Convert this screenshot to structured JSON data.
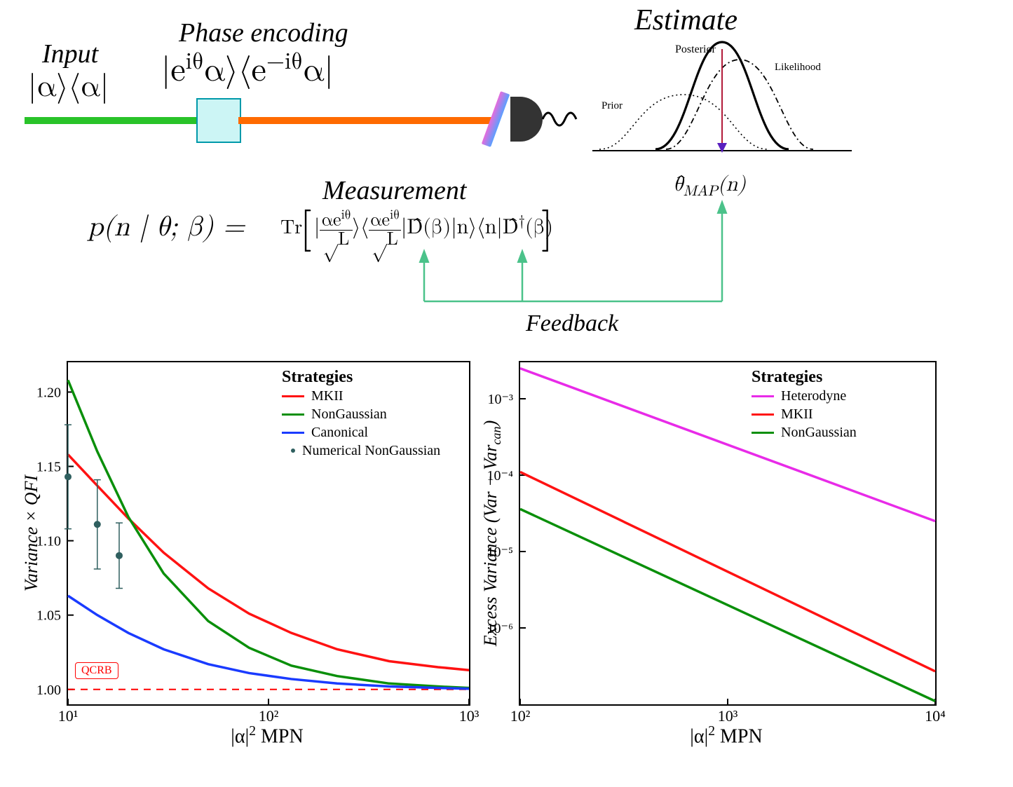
{
  "top": {
    "input_label": "Input",
    "input_state": "|α⟩⟨α|",
    "phase_label": "Phase encoding",
    "phase_state_html": "|e<span class='super'>iθ</span>α⟩⟨e<span class='super'>−iθ</span>α|",
    "estimate_label": "Estimate",
    "measurement_label": "Measurement",
    "feedback_label": "Feedback",
    "theta_map_html": "θ̂<span class='sub'>MAP</span>(n)",
    "posterior_label": "Posterior",
    "likelihood_label": "Likelihood",
    "prior_label": "Prior",
    "beam_green_color": "#29c329",
    "beam_orange_color": "#ff6a00",
    "crystal_fill": "#ccf5f5",
    "crystal_stroke": "#0099aa",
    "detector_color": "#333333",
    "feedback_arrow_color": "#4bc28a",
    "map_arrow_color": "#b21b3a",
    "map_arrowhead_color": "#5a1fbf"
  },
  "equation": {
    "lhs": "p(n | θ; β) =",
    "tr": "Tr",
    "frac_num_html": "αe<span class='super'>iθ</span>",
    "frac_den_html": "√L",
    "mid_html": "D̂(β)|n⟩⟨n|D̂<span class='super'>†</span>(β)"
  },
  "chart_left": {
    "type": "line",
    "x_scale": "log",
    "y_scale": "linear",
    "xlim": [
      10,
      1000
    ],
    "ylim": [
      0.99,
      1.22
    ],
    "x_ticks": [
      10,
      100,
      1000
    ],
    "x_tick_labels": [
      "10¹",
      "10²",
      "10³"
    ],
    "y_ticks": [
      1.0,
      1.05,
      1.1,
      1.15,
      1.2
    ],
    "y_tick_labels": [
      "1.00",
      "1.05",
      "1.10",
      "1.15",
      "1.20"
    ],
    "y_label": "Variance  ×  QFI",
    "x_label_html": "|α|<span class='super'>2</span> MPN",
    "qcrb_label": "QCRB",
    "qcrb_y": 1.0,
    "qcrb_color": "#ff0000",
    "background_color": "#ffffff",
    "axis_color": "#000000",
    "line_width": 3.5,
    "legend_title": "Strategies",
    "series": [
      {
        "name": "MKII",
        "color": "#ff1212",
        "x": [
          10,
          14,
          20,
          30,
          50,
          80,
          130,
          220,
          400,
          700,
          1000
        ],
        "y": [
          1.158,
          1.137,
          1.115,
          1.092,
          1.068,
          1.051,
          1.038,
          1.027,
          1.019,
          1.015,
          1.013
        ]
      },
      {
        "name": "NonGaussian",
        "color": "#0a8f0a",
        "x": [
          10,
          14,
          20,
          30,
          50,
          80,
          130,
          220,
          400,
          700,
          1000
        ],
        "y": [
          1.208,
          1.16,
          1.116,
          1.078,
          1.046,
          1.028,
          1.016,
          1.009,
          1.004,
          1.002,
          1.001
        ]
      },
      {
        "name": "Canonical",
        "color": "#1a3bff",
        "x": [
          10,
          14,
          20,
          30,
          50,
          80,
          130,
          220,
          400,
          700,
          1000
        ],
        "y": [
          1.063,
          1.05,
          1.038,
          1.027,
          1.017,
          1.011,
          1.007,
          1.004,
          1.002,
          1.001,
          1.0005
        ]
      }
    ],
    "scatter": {
      "name": "Numerical NonGaussian",
      "color": "#2f5f5f",
      "marker_size": 5,
      "points": [
        {
          "x": 10,
          "y": 1.143,
          "err": 0.035
        },
        {
          "x": 14,
          "y": 1.111,
          "err": 0.03
        },
        {
          "x": 18,
          "y": 1.09,
          "err": 0.022
        }
      ]
    },
    "legend_items": [
      {
        "label": "MKII",
        "color": "#ff1212",
        "type": "line"
      },
      {
        "label": "NonGaussian",
        "color": "#0a8f0a",
        "type": "line"
      },
      {
        "label": "Canonical",
        "color": "#1a3bff",
        "type": "line"
      },
      {
        "label": "Numerical NonGaussian",
        "color": "#2f5f5f",
        "type": "dot"
      }
    ]
  },
  "chart_right": {
    "type": "line",
    "x_scale": "log",
    "y_scale": "log",
    "xlim": [
      100,
      10000
    ],
    "ylim": [
      1e-07,
      0.003
    ],
    "x_ticks": [
      100,
      1000,
      10000
    ],
    "x_tick_labels": [
      "10²",
      "10³",
      "10⁴"
    ],
    "y_ticks": [
      1e-06,
      1e-05,
      0.0001,
      0.001
    ],
    "y_tick_labels": [
      "10⁻⁶",
      "10⁻⁵",
      "10⁻⁴",
      "10⁻³"
    ],
    "y_label_html": "Excess Variance (Var  − Var<span class='sub'>can</span>)",
    "x_label_html": "|α|<span class='super'>2</span> MPN",
    "background_color": "#ffffff",
    "axis_color": "#000000",
    "line_width": 3.5,
    "legend_title": "Strategies",
    "series": [
      {
        "name": "Heterodyne",
        "color": "#e82be8",
        "x": [
          100,
          10000
        ],
        "y": [
          0.0025,
          2.5e-05
        ]
      },
      {
        "name": "MKII",
        "color": "#ff1212",
        "x": [
          100,
          10000
        ],
        "y": [
          0.00011,
          2.7e-07
        ]
      },
      {
        "name": "NonGaussian",
        "color": "#0a8f0a",
        "x": [
          100,
          10000
        ],
        "y": [
          3.6e-05,
          1.1e-07
        ]
      }
    ],
    "legend_items": [
      {
        "label": "Heterodyne",
        "color": "#e82be8",
        "type": "line"
      },
      {
        "label": "MKII",
        "color": "#ff1212",
        "type": "line"
      },
      {
        "label": "NonGaussian",
        "color": "#0a8f0a",
        "type": "line"
      }
    ]
  }
}
